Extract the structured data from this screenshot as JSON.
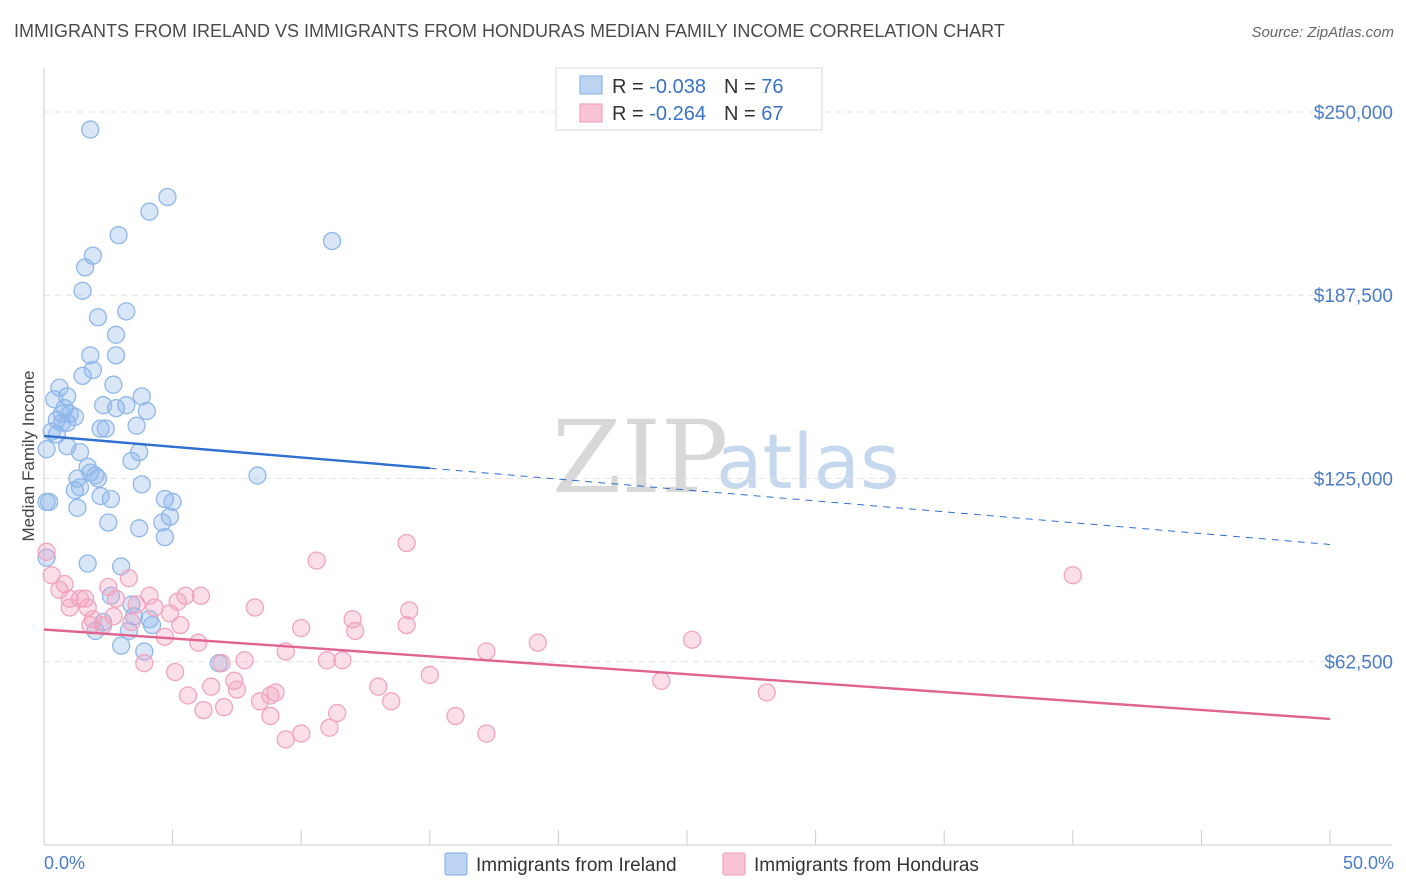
{
  "chart_data": {
    "type": "scatter",
    "title": "IMMIGRANTS FROM IRELAND VS IMMIGRANTS FROM HONDURAS MEDIAN FAMILY INCOME CORRELATION CHART",
    "source": "Source: ZipAtlas.com",
    "xlabel": "",
    "ylabel": "Median Family Income",
    "xlim": [
      0,
      50
    ],
    "ylim": [
      0,
      265000
    ],
    "x_tick_labels": [
      "0.0%",
      "50.0%"
    ],
    "y_ticks": [
      62500,
      125000,
      187500,
      250000
    ],
    "y_tick_labels": [
      "$62,500",
      "$125,000",
      "$187,500",
      "$250,000"
    ],
    "grid": true,
    "watermark": [
      "ZIP",
      "atlas"
    ],
    "legend": {
      "position": "top-center",
      "entries": [
        {
          "r_label": "R = ",
          "r_value": "-0.038",
          "n_label": "N = ",
          "n_value": "76"
        },
        {
          "r_label": "R = ",
          "r_value": "-0.264",
          "n_label": "N = ",
          "n_value": "67"
        }
      ]
    },
    "series": [
      {
        "name": "Immigrants from Ireland",
        "color": "#8fb7ea",
        "line_color": "#2f6fce",
        "trend": {
          "x0": 0,
          "y0": 139500,
          "x1": 15,
          "y1": 128500,
          "x_dash_end": 50,
          "y_dash_end": 102500
        },
        "points": [
          [
            1.8,
            244000
          ],
          [
            4.8,
            221000
          ],
          [
            4.1,
            216000
          ],
          [
            2.9,
            208000
          ],
          [
            11.2,
            206000
          ],
          [
            1.9,
            201000
          ],
          [
            1.6,
            197000
          ],
          [
            1.5,
            189000
          ],
          [
            3.2,
            182000
          ],
          [
            2.1,
            180000
          ],
          [
            2.8,
            174000
          ],
          [
            1.8,
            167000
          ],
          [
            2.8,
            167000
          ],
          [
            1.9,
            162000
          ],
          [
            1.5,
            160000
          ],
          [
            2.7,
            157000
          ],
          [
            0.6,
            156000
          ],
          [
            0.9,
            153000
          ],
          [
            3.8,
            153000
          ],
          [
            0.4,
            152000
          ],
          [
            2.3,
            150000
          ],
          [
            0.8,
            149000
          ],
          [
            3.2,
            150000
          ],
          [
            2.8,
            149000
          ],
          [
            4.0,
            148000
          ],
          [
            0.7,
            147000
          ],
          [
            1.0,
            147000
          ],
          [
            1.2,
            146000
          ],
          [
            0.5,
            145000
          ],
          [
            0.7,
            144000
          ],
          [
            0.9,
            144000
          ],
          [
            3.6,
            143000
          ],
          [
            2.4,
            142000
          ],
          [
            2.2,
            142000
          ],
          [
            0.3,
            141000
          ],
          [
            0.5,
            140000
          ],
          [
            0.9,
            136000
          ],
          [
            0.1,
            135000
          ],
          [
            3.7,
            134000
          ],
          [
            1.4,
            134000
          ],
          [
            3.4,
            131000
          ],
          [
            1.7,
            129000
          ],
          [
            2.0,
            126000
          ],
          [
            1.8,
            127000
          ],
          [
            8.3,
            126000
          ],
          [
            1.3,
            125000
          ],
          [
            2.1,
            125000
          ],
          [
            3.8,
            123000
          ],
          [
            1.4,
            122000
          ],
          [
            1.2,
            121000
          ],
          [
            2.2,
            119000
          ],
          [
            2.6,
            118000
          ],
          [
            4.7,
            118000
          ],
          [
            5.0,
            117000
          ],
          [
            0.1,
            117000
          ],
          [
            0.2,
            117000
          ],
          [
            1.3,
            115000
          ],
          [
            4.9,
            112000
          ],
          [
            4.6,
            110000
          ],
          [
            2.5,
            110000
          ],
          [
            3.7,
            108000
          ],
          [
            4.7,
            105000
          ],
          [
            0.1,
            98000
          ],
          [
            1.7,
            96000
          ],
          [
            3.0,
            95000
          ],
          [
            2.6,
            85000
          ],
          [
            3.4,
            82000
          ],
          [
            4.1,
            77000
          ],
          [
            2.3,
            76000
          ],
          [
            3.3,
            73000
          ],
          [
            3.0,
            68000
          ],
          [
            3.9,
            66000
          ],
          [
            6.8,
            62000
          ],
          [
            4.2,
            75000
          ],
          [
            2.0,
            73000
          ],
          [
            3.5,
            78000
          ]
        ]
      },
      {
        "name": "Immigrants from Honduras",
        "color": "#f2a3bf",
        "line_color": "#e06490",
        "trend": {
          "x0": 0,
          "y0": 73500,
          "x1": 50,
          "y1": 43000
        },
        "points": [
          [
            0.1,
            100000
          ],
          [
            0.3,
            92000
          ],
          [
            0.8,
            89000
          ],
          [
            0.6,
            87000
          ],
          [
            1.0,
            84000
          ],
          [
            1.6,
            84000
          ],
          [
            1.4,
            84000
          ],
          [
            2.8,
            84000
          ],
          [
            2.5,
            88000
          ],
          [
            3.3,
            91000
          ],
          [
            4.1,
            85000
          ],
          [
            5.5,
            85000
          ],
          [
            6.1,
            85000
          ],
          [
            5.2,
            83000
          ],
          [
            3.6,
            82000
          ],
          [
            1.0,
            81000
          ],
          [
            1.7,
            81000
          ],
          [
            4.3,
            81000
          ],
          [
            8.2,
            81000
          ],
          [
            14.2,
            80000
          ],
          [
            4.9,
            79000
          ],
          [
            2.7,
            78000
          ],
          [
            1.9,
            77000
          ],
          [
            3.4,
            76000
          ],
          [
            5.3,
            75000
          ],
          [
            2.3,
            75000
          ],
          [
            1.8,
            75000
          ],
          [
            12.0,
            77000
          ],
          [
            10.0,
            74000
          ],
          [
            12.1,
            73000
          ],
          [
            14.1,
            75000
          ],
          [
            4.7,
            71000
          ],
          [
            6.0,
            69000
          ],
          [
            19.2,
            69000
          ],
          [
            25.2,
            70000
          ],
          [
            17.2,
            66000
          ],
          [
            9.4,
            66000
          ],
          [
            11.0,
            63000
          ],
          [
            11.6,
            63000
          ],
          [
            7.8,
            63000
          ],
          [
            6.9,
            62000
          ],
          [
            3.9,
            62000
          ],
          [
            5.1,
            59000
          ],
          [
            15.0,
            58000
          ],
          [
            24.0,
            56000
          ],
          [
            7.4,
            56000
          ],
          [
            6.5,
            54000
          ],
          [
            13.0,
            54000
          ],
          [
            28.1,
            52000
          ],
          [
            7.5,
            53000
          ],
          [
            5.6,
            51000
          ],
          [
            8.8,
            51000
          ],
          [
            8.4,
            49000
          ],
          [
            13.5,
            49000
          ],
          [
            7.0,
            47000
          ],
          [
            6.2,
            46000
          ],
          [
            11.4,
            45000
          ],
          [
            8.8,
            44000
          ],
          [
            16.0,
            44000
          ],
          [
            11.1,
            40000
          ],
          [
            10.0,
            38000
          ],
          [
            17.2,
            38000
          ],
          [
            9.4,
            36000
          ],
          [
            14.1,
            103000
          ],
          [
            10.6,
            97000
          ],
          [
            40.0,
            92000
          ],
          [
            9.0,
            52000
          ]
        ]
      }
    ]
  }
}
